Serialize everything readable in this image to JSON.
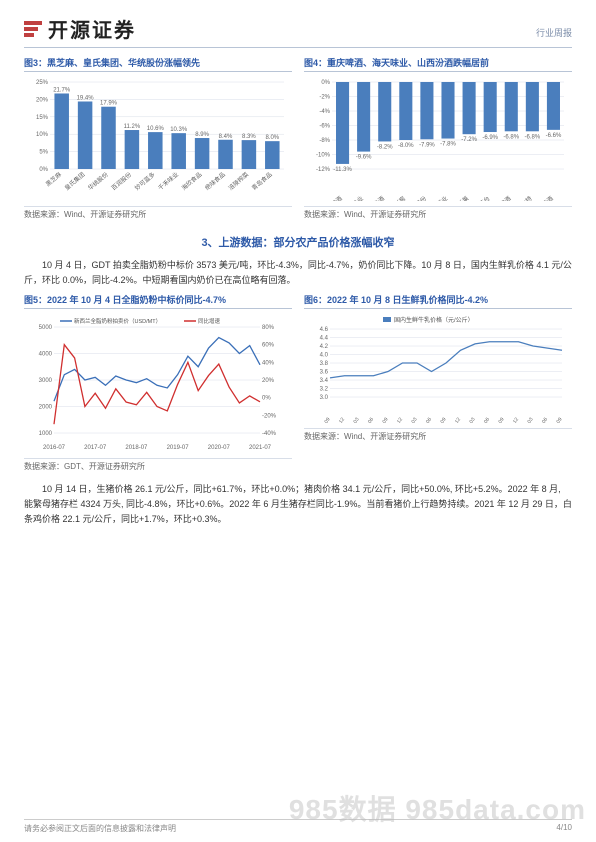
{
  "header": {
    "brand": "开源证券",
    "topright": "行业周报"
  },
  "fig3": {
    "title": "图3：黑芝麻、皇氏集团、华统股份涨幅领先",
    "categories": [
      "黑芝麻",
      "皇氏集团",
      "华统股份",
      "百润股份",
      "妙可蓝多",
      "千禾味业",
      "海欣食品",
      "绝味食品",
      "涪陵榨菜",
      "青岛食品"
    ],
    "values": [
      21.7,
      19.4,
      17.9,
      11.2,
      10.6,
      10.3,
      8.9,
      8.4,
      8.3,
      8.0
    ],
    "bar_color": "#4a7ebd",
    "grid_color": "#d8dee8",
    "text_color": "#666",
    "ylim": [
      0,
      25
    ],
    "ytick_step": 5,
    "label_fontsize": 6,
    "value_fontsize": 6,
    "source": "数据来源：Wind、开源证券研究所"
  },
  "fig4": {
    "title": "图4：重庆啤酒、海天味业、山西汾酒跌幅居前",
    "categories": [
      "重庆啤酒",
      "海天味业",
      "山西汾酒",
      "泸州老窖",
      "洋河股份",
      "舍得酒业",
      "ST新莱",
      "贵州茅台",
      "珠江啤酒",
      "伊力特",
      "古井贡酒"
    ],
    "values": [
      -11.3,
      -9.6,
      -8.2,
      -8.0,
      -7.9,
      -7.8,
      -7.2,
      -6.9,
      -6.8,
      -6.8,
      -6.6
    ],
    "bar_color": "#4a7ebd",
    "grid_color": "#d8dee8",
    "text_color": "#666",
    "ylim": [
      -12,
      0
    ],
    "ytick_step": 2,
    "label_fontsize": 6,
    "value_fontsize": 6,
    "source": "数据来源：Wind、开源证券研究所"
  },
  "section3": {
    "title": "3、上游数据：部分农产品价格涨幅收窄",
    "para1": "10 月 4 日，GDT 拍卖全脂奶粉中标价 3573 美元/吨，环比-4.3%，同比-4.7%，奶价同比下降。10 月 8 日，国内生鲜乳价格 4.1 元/公斤，环比 0.0%，同比-4.2%。中短期看国内奶价已在高位略有回落。"
  },
  "fig5": {
    "title": "图5：2022 年 10 月 4 日全脂奶粉中标价同比-4.7%",
    "legend": [
      "新西兰全脂奶粉拍卖价（USD/MT）",
      "同比增速"
    ],
    "x_labels": [
      "2016-07",
      "2017-07",
      "2018-07",
      "2019-07",
      "2020-07",
      "2021-07"
    ],
    "series_price": {
      "color": "#3a6fb8",
      "ylim": [
        1000,
        5000
      ],
      "ytick_step": 1000,
      "data": [
        2200,
        3200,
        3400,
        3000,
        3100,
        2800,
        3150,
        3000,
        2900,
        3050,
        2800,
        2700,
        3200,
        3900,
        3500,
        4200,
        4600,
        4400,
        4000,
        4300,
        3573
      ]
    },
    "series_yoy": {
      "color": "#d02f2f",
      "ylim": [
        -40,
        80
      ],
      "ytick_step": 20,
      "data": [
        -30,
        60,
        45,
        -10,
        5,
        -12,
        10,
        -5,
        -8,
        6,
        -10,
        -15,
        15,
        40,
        8,
        25,
        38,
        12,
        -6,
        2,
        -4.7
      ]
    },
    "grid_color": "#d8dee8",
    "label_fontsize": 6,
    "source": "数据来源：GDT、开源证券研究所"
  },
  "fig6": {
    "title": "图6：2022 年 10 月 8 日生鲜乳价格同比-4.2%",
    "legend": [
      "国内生鲜牛乳价格（元/公斤）"
    ],
    "x_labels": [
      "2018-09",
      "2018-12",
      "2019-03",
      "2019-06",
      "2019-09",
      "2019-12",
      "2020-03",
      "2020-06",
      "2020-09",
      "2020-12",
      "2021-03",
      "2021-06",
      "2021-09",
      "2021-12",
      "2022-03",
      "2022-06",
      "2022-09"
    ],
    "series": {
      "color": "#4a7ebd",
      "ylim": [
        3.0,
        4.6
      ],
      "ytick_step": 0.2,
      "data": [
        3.45,
        3.5,
        3.5,
        3.5,
        3.6,
        3.8,
        3.8,
        3.6,
        3.8,
        4.1,
        4.25,
        4.3,
        4.3,
        4.3,
        4.2,
        4.15,
        4.1
      ]
    },
    "grid_color": "#d8dee8",
    "label_fontsize": 6,
    "source": "数据来源：Wind、开源证券研究所"
  },
  "para2": "10 月 14 日，生猪价格 26.1 元/公斤，同比+61.7%，环比+0.0%；猪肉价格 34.1 元/公斤，同比+50.0%, 环比+5.2%。2022 年 8 月, 能繁母猪存栏 4324 万头, 同比-4.8%，环比+0.6%。2022 年 6 月生猪存栏同比-1.9%。当前看猪价上行趋势持续。2021 年 12 月 29 日，白条鸡价格 22.1 元/公斤，同比+1.7%，环比+0.3%。",
  "footer": {
    "left": "请务必参阅正文后面的信息披露和法律声明",
    "right": "4/10"
  },
  "watermark": "985数据 985data.com"
}
